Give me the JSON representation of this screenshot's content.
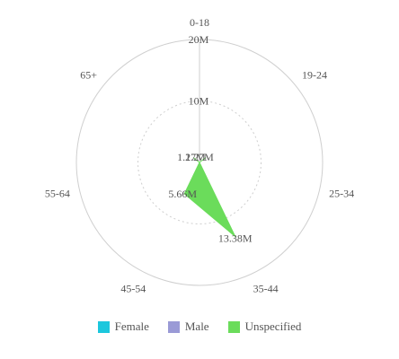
{
  "chart_data": {
    "type": "radar",
    "categories": [
      "0-18",
      "19-24",
      "25-34",
      "35-44",
      "45-54",
      "55-64",
      "65+"
    ],
    "radial_ticks": [
      "10M",
      "20M"
    ],
    "rlim": [
      0,
      20000000
    ],
    "grid": true,
    "legend_position": "bottom",
    "series": [
      {
        "name": "Female",
        "color": "#1cc7dd",
        "values": [
          0,
          0,
          0,
          0,
          0,
          0,
          0
        ]
      },
      {
        "name": "Male",
        "color": "#9a9ad6",
        "values": [
          0,
          0,
          0,
          0,
          0,
          0,
          0
        ]
      },
      {
        "name": "Unspecified",
        "color": "#6bdc5b",
        "values": [
          0,
          1270000,
          0,
          13380000,
          5660000,
          0,
          1270000
        ],
        "labels": [
          "",
          "1.27M",
          "",
          "13.38M",
          "5.66M",
          "",
          "1.27M"
        ]
      }
    ]
  }
}
